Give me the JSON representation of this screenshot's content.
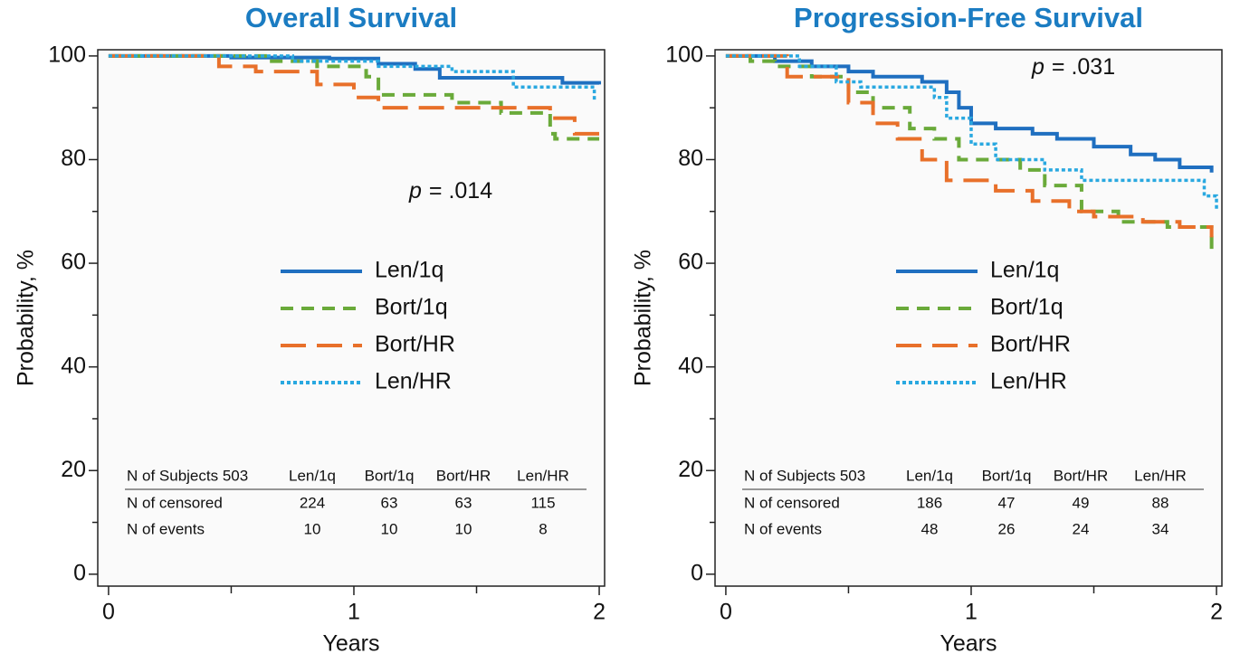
{
  "chart_data": [
    {
      "type": "line",
      "step": true,
      "title": "Overall Survival",
      "xlabel": "Years",
      "ylabel": "Probability, %",
      "xlim": [
        -0.044,
        2.022
      ],
      "ylim": [
        -2.3,
        101.2
      ],
      "xticks": [
        0,
        1,
        2
      ],
      "xminor_ticks": [
        0.5,
        1.5
      ],
      "yticks": [
        0,
        20,
        40,
        60,
        80,
        100
      ],
      "yminor_ticks": [
        10,
        30,
        50,
        70,
        90
      ],
      "annotation": {
        "italic": "p",
        "text": "= .014"
      },
      "series": [
        {
          "name": "Len/1q",
          "color": "#1f6fc0",
          "style": "solid",
          "x": [
            0,
            0.5,
            0.9,
            1.1,
            1.25,
            1.35,
            1.85,
            2.0
          ],
          "values": [
            100,
            99.7,
            99.5,
            98.5,
            97.5,
            95.8,
            94.8,
            94.5
          ]
        },
        {
          "name": "Bort/1q",
          "color": "#6aaa3a",
          "style": "dashed",
          "x": [
            0,
            0.65,
            0.85,
            1.05,
            1.1,
            1.4,
            1.6,
            1.8,
            1.82,
            2.0
          ],
          "values": [
            100,
            99,
            98,
            96,
            92.5,
            91,
            89,
            85,
            84,
            84
          ]
        },
        {
          "name": "Bort/HR",
          "color": "#e8702a",
          "style": "long-dashed",
          "x": [
            0,
            0.45,
            0.6,
            0.85,
            1.0,
            1.1,
            1.8,
            1.9,
            2.0
          ],
          "values": [
            100,
            98,
            97,
            94.5,
            92,
            90,
            88,
            85,
            85
          ]
        },
        {
          "name": "Len/HR",
          "color": "#29a8e0",
          "style": "dotted",
          "x": [
            0,
            0.75,
            1.1,
            1.4,
            1.65,
            1.95,
            1.98
          ],
          "values": [
            100,
            99,
            98,
            97,
            94,
            94,
            91.5
          ]
        }
      ],
      "table": {
        "header": [
          "N of Subjects 503",
          "Len/1q",
          "Bort/1q",
          "Bort/HR",
          "Len/HR"
        ],
        "rows": [
          [
            "N of censored",
            224,
            63,
            63,
            115
          ],
          [
            "N of events",
            10,
            10,
            10,
            8
          ]
        ]
      }
    },
    {
      "type": "line",
      "step": true,
      "title": "Progression-Free Survival",
      "xlabel": "Years",
      "ylabel": "Probability, %",
      "xlim": [
        -0.044,
        2.022
      ],
      "ylim": [
        -2.3,
        101.2
      ],
      "xticks": [
        0,
        1,
        2
      ],
      "xminor_ticks": [
        0.5,
        1.5
      ],
      "yticks": [
        0,
        20,
        40,
        60,
        80,
        100
      ],
      "yminor_ticks": [
        10,
        30,
        50,
        70,
        90
      ],
      "annotation": {
        "italic": "p",
        "text": "= .031"
      },
      "series": [
        {
          "name": "Len/1q",
          "color": "#1f6fc0",
          "style": "solid",
          "x": [
            0,
            0.2,
            0.35,
            0.5,
            0.6,
            0.8,
            0.9,
            0.95,
            1.0,
            1.1,
            1.25,
            1.35,
            1.5,
            1.65,
            1.75,
            1.85,
            1.98
          ],
          "values": [
            100,
            99,
            98,
            97,
            96,
            95,
            93,
            90,
            87,
            86,
            85,
            84,
            82.5,
            81,
            80,
            78.5,
            77.5
          ]
        },
        {
          "name": "Bort/1q",
          "color": "#6aaa3a",
          "style": "dashed",
          "x": [
            0,
            0.1,
            0.2,
            0.35,
            0.5,
            0.6,
            0.75,
            0.85,
            0.95,
            1.2,
            1.3,
            1.45,
            1.6,
            1.8,
            1.98
          ],
          "values": [
            100,
            99,
            98,
            96,
            93,
            90,
            86,
            84,
            80,
            78,
            75,
            70,
            68,
            67,
            62
          ]
        },
        {
          "name": "Bort/HR",
          "color": "#e8702a",
          "style": "long-dashed",
          "x": [
            0,
            0.25,
            0.5,
            0.6,
            0.7,
            0.8,
            0.9,
            1.1,
            1.25,
            1.4,
            1.5,
            1.7,
            1.85,
            1.98
          ],
          "values": [
            100,
            96,
            91,
            87,
            84,
            80,
            76,
            74,
            72,
            70,
            69,
            68,
            67,
            65
          ]
        },
        {
          "name": "Len/HR",
          "color": "#29a8e0",
          "style": "dotted",
          "x": [
            0,
            0.3,
            0.45,
            0.55,
            0.85,
            0.9,
            1.0,
            1.1,
            1.3,
            1.45,
            1.9,
            1.95,
            2.0
          ],
          "values": [
            100,
            98,
            95,
            94,
            92,
            88,
            83,
            80,
            78,
            76,
            76,
            73,
            70
          ]
        }
      ],
      "table": {
        "header": [
          "N of Subjects 503",
          "Len/1q",
          "Bort/1q",
          "Bort/HR",
          "Len/HR"
        ],
        "rows": [
          [
            "N of censored",
            186,
            47,
            49,
            88
          ],
          [
            "N of events",
            48,
            26,
            24,
            34
          ]
        ]
      }
    }
  ]
}
